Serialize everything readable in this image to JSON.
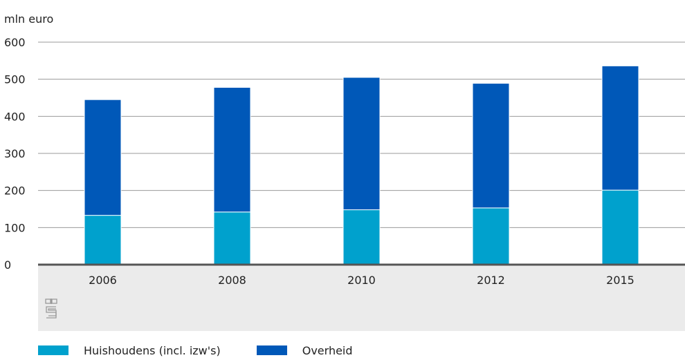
{
  "chart_data": {
    "type": "bar",
    "stacked": true,
    "ylabel": "mln euro",
    "ylim": [
      0,
      600
    ],
    "yticks": [
      0,
      100,
      200,
      300,
      400,
      500,
      600
    ],
    "categories": [
      "2006",
      "2008",
      "2010",
      "2012",
      "2015"
    ],
    "series": [
      {
        "name": "Huishoudens (incl. izw's)",
        "color": "#00a1cd",
        "values": [
          133,
          142,
          148,
          153,
          201
        ]
      },
      {
        "name": "Overheid",
        "color": "#0058b8",
        "values": [
          312,
          336,
          357,
          336,
          335
        ]
      }
    ],
    "grid": true,
    "legend": "bottom-left"
  }
}
